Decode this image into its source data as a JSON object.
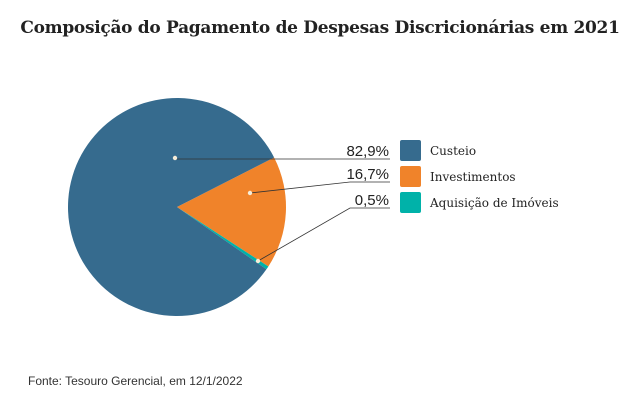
{
  "chart_data": {
    "type": "pie",
    "title": "Composição do Pagamento de Despesas Discricionárias em 2021",
    "slices": [
      {
        "label": "Custeio",
        "value": 82.9,
        "value_label": "82,9%",
        "color": "#366b8e"
      },
      {
        "label": "Investimentos",
        "value": 16.7,
        "value_label": "16,7%",
        "color": "#f0832a"
      },
      {
        "label": "Aquisição de Imóveis",
        "value": 0.5,
        "value_label": "0,5%",
        "color": "#00b2a9"
      }
    ],
    "legend": "right",
    "source": "Fonte: Tesouro Gerencial, em 12/1/2022"
  }
}
